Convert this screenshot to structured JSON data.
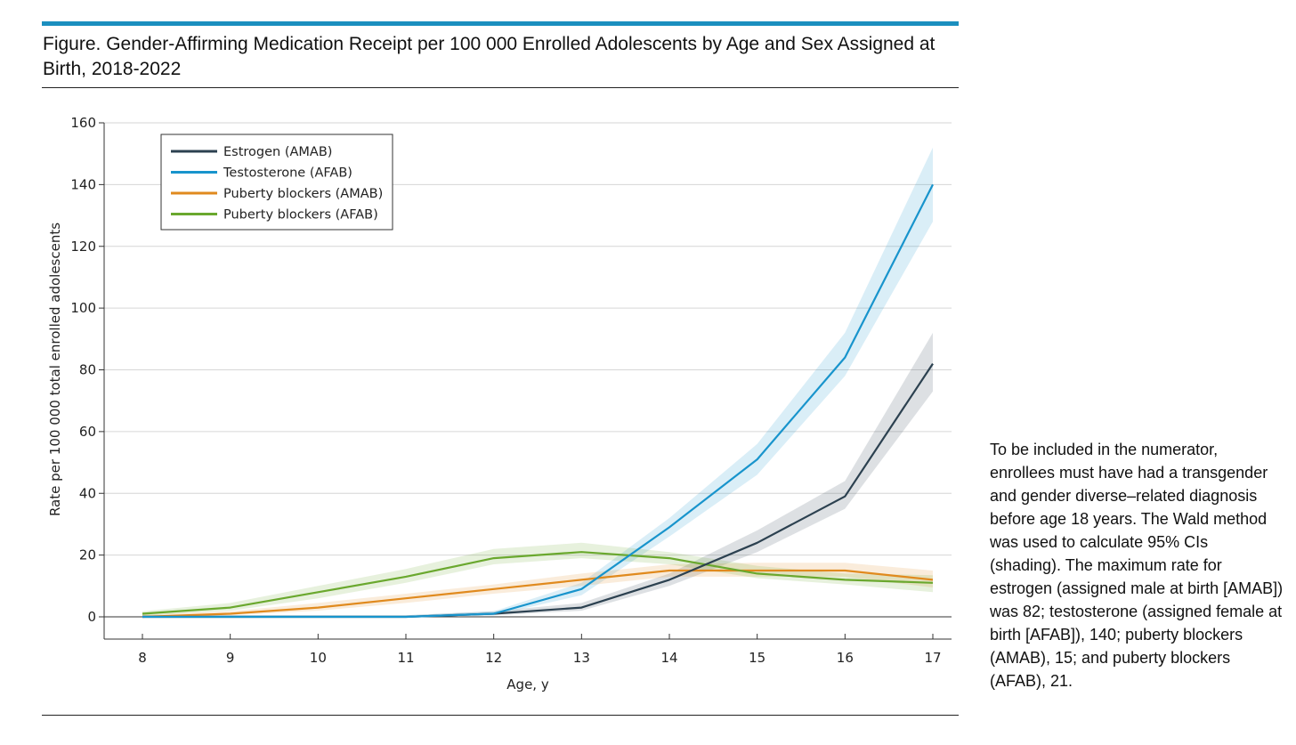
{
  "figure": {
    "title": "Figure. Gender-Affirming Medication Receipt per 100 000 Enrolled Adolescents by Age and Sex Assigned at Birth, 2018-2022",
    "note": "To be included in the numerator, enrollees must have had a transgender and gender diverse–related diagnosis before age 18 years. The Wald method was used to calculate 95% CIs (shading). The maximum rate for estrogen (assigned male at birth [AMAB]) was 82; testosterone (assigned female at birth [AFAB]), 140; puberty blockers (AMAB), 15; and puberty blockers (AFAB), 21.",
    "accent_color": "#1b8fbf"
  },
  "chart_data": {
    "type": "line",
    "xlabel": "Age, y",
    "ylabel": "Rate per 100 000 total enrolled adolescents",
    "x": [
      8,
      9,
      10,
      11,
      12,
      13,
      14,
      15,
      16,
      17
    ],
    "xticks": [
      "8",
      "9",
      "10",
      "11",
      "12",
      "13",
      "14",
      "15",
      "16",
      "17"
    ],
    "ylim": [
      0,
      160
    ],
    "yticks": [
      "0",
      "20",
      "40",
      "60",
      "80",
      "100",
      "120",
      "140",
      "160"
    ],
    "grid": "horizontal",
    "legend_position": "top-left",
    "series": [
      {
        "name": "Estrogen (AMAB)",
        "color": "#2c4150",
        "values": [
          0,
          0,
          0,
          0,
          1,
          3,
          12,
          24,
          39,
          82
        ],
        "ci_lower": [
          0,
          0,
          0,
          0,
          0.5,
          2,
          10,
          21,
          35,
          73
        ],
        "ci_upper": [
          0.5,
          0.5,
          0.5,
          0.5,
          1.8,
          4.5,
          14,
          28,
          44,
          92
        ]
      },
      {
        "name": "Testosterone (AFAB)",
        "color": "#1894cc",
        "values": [
          0,
          0,
          0,
          0,
          1,
          9,
          29,
          51,
          84,
          140
        ],
        "ci_lower": [
          0,
          0,
          0,
          0,
          0.5,
          7,
          26,
          46,
          78,
          128
        ],
        "ci_upper": [
          0.5,
          0.5,
          0.5,
          0.5,
          1.8,
          11,
          32,
          56,
          92,
          152
        ]
      },
      {
        "name": "Puberty blockers (AMAB)",
        "color": "#e08a1e",
        "values": [
          0,
          1,
          3,
          6,
          9,
          12,
          15,
          15,
          15,
          12
        ],
        "ci_lower": [
          0,
          0.5,
          2,
          4.5,
          7.5,
          10,
          13,
          13,
          13,
          9.5
        ],
        "ci_upper": [
          0.8,
          1.8,
          4.5,
          7.5,
          10.5,
          14,
          17,
          17.5,
          17.5,
          15
        ]
      },
      {
        "name": "Puberty blockers (AFAB)",
        "color": "#6aa82e",
        "values": [
          1,
          3,
          8,
          13,
          19,
          21,
          19,
          14,
          12,
          11
        ],
        "ci_lower": [
          0.4,
          2,
          6,
          11,
          17,
          19,
          17,
          12.5,
          10.5,
          8
        ],
        "ci_upper": [
          1.8,
          4.5,
          10,
          15.5,
          22,
          24,
          21,
          16.5,
          14,
          13.5
        ]
      }
    ]
  }
}
